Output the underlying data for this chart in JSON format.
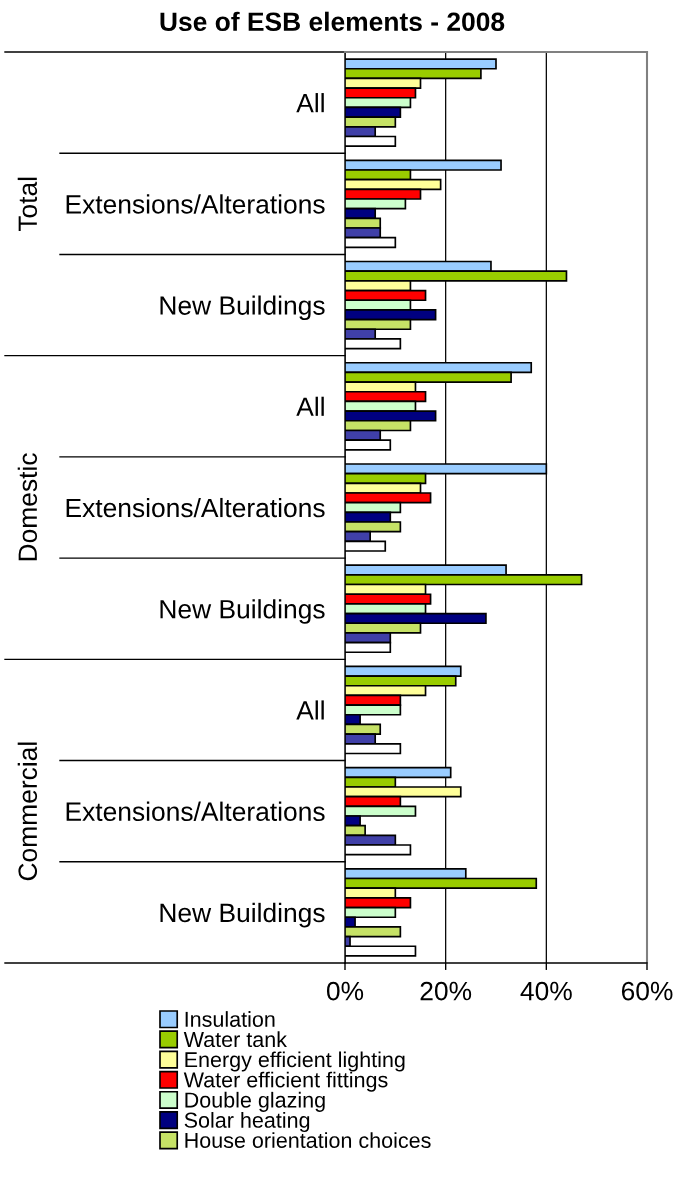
{
  "chart_data": {
    "type": "bar",
    "orientation": "horizontal",
    "title": "Use of ESB elements - 2008",
    "categories": [
      "All",
      "Extensions/Alterations",
      "New Buildings",
      "All",
      "Extensions/Alterations",
      "New Buildings",
      "All",
      "Extensions/Alterations",
      "New Buildings"
    ],
    "annotations": [
      "Total",
      "Domestic",
      "Commercial"
    ],
    "series": [
      {
        "name": "Insulation",
        "color": "#99ccff",
        "values": [
          30,
          31,
          29,
          37,
          40,
          32,
          23,
          21,
          24
        ]
      },
      {
        "name": "Water tank",
        "color": "#99cc00",
        "values": [
          27,
          13,
          44,
          33,
          16,
          47,
          22,
          10,
          38
        ]
      },
      {
        "name": "Energy efficient lighting",
        "color": "#ffff99",
        "values": [
          15,
          19,
          13,
          14,
          15,
          16,
          16,
          23,
          10
        ]
      },
      {
        "name": "Water efficient fittings",
        "color": "#ff0000",
        "values": [
          14,
          15,
          16,
          16,
          17,
          17,
          11,
          11,
          13
        ]
      },
      {
        "name": "Double glazing",
        "color": "#ccffcc",
        "values": [
          13,
          12,
          13,
          14,
          11,
          16,
          11,
          14,
          10
        ]
      },
      {
        "name": "Solar heating",
        "color": "#000080",
        "values": [
          11,
          6,
          18,
          18,
          9,
          28,
          3,
          3,
          2
        ]
      },
      {
        "name": "House orientation choices",
        "color": "#c6e266",
        "values": [
          10,
          7,
          13,
          13,
          11,
          15,
          7,
          4,
          11
        ]
      },
      {
        "color": "#4040a8",
        "values": [
          6,
          7,
          6,
          7,
          5,
          9,
          6,
          10,
          1
        ]
      },
      {
        "color": "#ffffff",
        "values": [
          10,
          10,
          11,
          9,
          8,
          9,
          11,
          13,
          14
        ]
      }
    ],
    "xlim": [
      0,
      60
    ],
    "xticks": [
      {
        "value": 0,
        "label": "0%"
      },
      {
        "value": 20,
        "label": "20%"
      },
      {
        "value": 40,
        "label": "40%"
      },
      {
        "value": 60,
        "label": "60%"
      }
    ],
    "grid": "x",
    "legend": "bottom"
  }
}
